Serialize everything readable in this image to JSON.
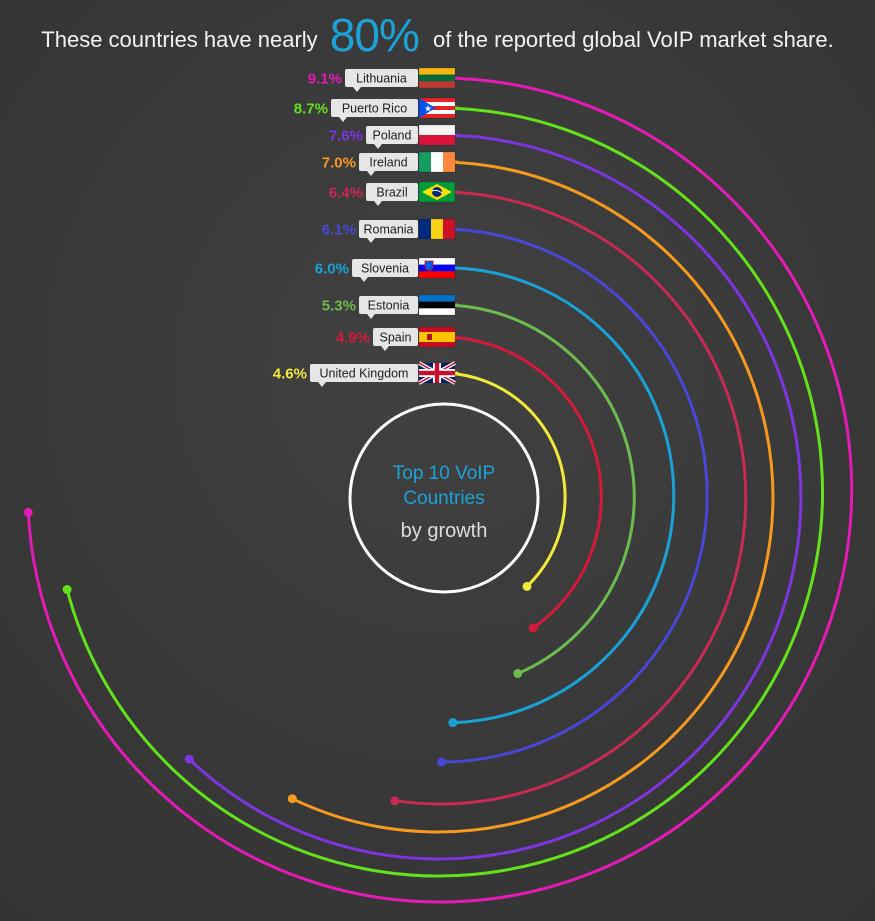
{
  "headline": {
    "prefix": "These countries have nearly",
    "highlight": "80%",
    "suffix": "of the reported global VoIP market share."
  },
  "center": {
    "line1": "Top 10 VoIP",
    "line2": "Countries",
    "line3": "by growth"
  },
  "colors": {
    "background": "#3a3a3a",
    "highlight": "#1ba3d8",
    "center_ring": "#ffffff"
  },
  "chart_data": {
    "type": "radial-bar",
    "unit": "%",
    "series": [
      {
        "country": "Lithuania",
        "value": 9.1,
        "label": "9.1%",
        "color": "#e41bb4",
        "flag": "lithuania"
      },
      {
        "country": "Puerto Rico",
        "value": 8.7,
        "label": "8.7%",
        "color": "#63e11a",
        "flag": "puerto-rico"
      },
      {
        "country": "Poland",
        "value": 7.6,
        "label": "7.6%",
        "color": "#7d35e0",
        "flag": "poland"
      },
      {
        "country": "Ireland",
        "value": 7.0,
        "label": "7.0%",
        "color": "#f59a1f",
        "flag": "ireland"
      },
      {
        "country": "Brazil",
        "value": 6.4,
        "label": "6.4%",
        "color": "#c72a55",
        "flag": "brazil"
      },
      {
        "country": "Romania",
        "value": 6.1,
        "label": "6.1%",
        "color": "#4847d6",
        "flag": "romania"
      },
      {
        "country": "Slovenia",
        "value": 6.0,
        "label": "6.0%",
        "color": "#1aa2d6",
        "flag": "slovenia"
      },
      {
        "country": "Estonia",
        "value": 5.3,
        "label": "5.3%",
        "color": "#6cbb4e",
        "flag": "estonia"
      },
      {
        "country": "Spain",
        "value": 4.9,
        "label": "4.9%",
        "color": "#d41a3a",
        "flag": "spain"
      },
      {
        "country": "United Kingdom",
        "value": 4.6,
        "label": "4.6%",
        "color": "#f1ea3a",
        "flag": "united-kingdom"
      }
    ]
  }
}
